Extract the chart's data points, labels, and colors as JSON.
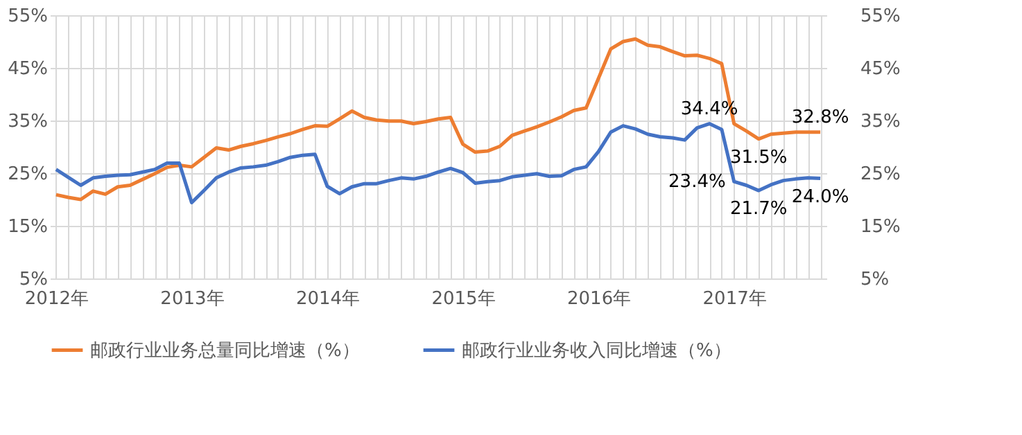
{
  "chart_data": {
    "type": "line",
    "categories": [
      "2012年",
      null,
      null,
      null,
      null,
      null,
      null,
      null,
      null,
      null,
      null,
      "2013年",
      null,
      null,
      null,
      null,
      null,
      null,
      null,
      null,
      null,
      null,
      "2014年",
      null,
      null,
      null,
      null,
      null,
      null,
      null,
      null,
      null,
      null,
      "2015年",
      null,
      null,
      null,
      null,
      null,
      null,
      null,
      null,
      null,
      null,
      "2016年",
      null,
      null,
      null,
      null,
      null,
      null,
      null,
      null,
      null,
      null,
      "2017年",
      null,
      null,
      null,
      null,
      null,
      null,
      null
    ],
    "series": [
      {
        "name": "邮政行业业务总量同比增速（%）",
        "color": "#ed7d31",
        "values": [
          20.9,
          20.4,
          20.0,
          21.6,
          21.0,
          22.4,
          22.7,
          23.8,
          24.9,
          26.1,
          26.5,
          26.2,
          28.0,
          29.8,
          29.4,
          30.1,
          30.6,
          31.2,
          31.9,
          32.5,
          33.3,
          34.0,
          33.9,
          35.3,
          36.8,
          35.6,
          35.1,
          34.9,
          34.9,
          34.4,
          34.8,
          35.3,
          35.6,
          30.5,
          29.0,
          29.2,
          30.1,
          32.2,
          33.0,
          33.8,
          34.7,
          35.7,
          36.9,
          37.4,
          43.0,
          48.6,
          50.0,
          50.5,
          49.3,
          49.0,
          48.1,
          47.3,
          47.4,
          46.8,
          45.8,
          34.4,
          33.0,
          31.5,
          32.4,
          32.6,
          32.8,
          32.8,
          32.8
        ],
        "value_labels": [
          null,
          null,
          null,
          null,
          null,
          null,
          null,
          null,
          null,
          null,
          null,
          null,
          null,
          null,
          null,
          null,
          null,
          null,
          null,
          null,
          null,
          null,
          null,
          null,
          null,
          null,
          null,
          null,
          null,
          null,
          null,
          null,
          null,
          null,
          null,
          null,
          null,
          null,
          null,
          null,
          null,
          null,
          null,
          null,
          null,
          null,
          null,
          null,
          null,
          null,
          null,
          null,
          null,
          null,
          null,
          null,
          null,
          "31.5%",
          null,
          null,
          null,
          null,
          "32.8%"
        ]
      },
      {
        "name": "邮政行业业务收入同比增速（%）",
        "color": "#4472c4",
        "values": [
          25.7,
          24.2,
          22.7,
          24.1,
          24.4,
          24.6,
          24.7,
          25.2,
          25.7,
          26.9,
          26.9,
          19.4,
          21.7,
          24.1,
          25.2,
          26.0,
          26.2,
          26.5,
          27.2,
          28.0,
          28.4,
          28.6,
          22.5,
          21.1,
          22.4,
          23.0,
          23.0,
          23.6,
          24.1,
          23.9,
          24.4,
          25.2,
          25.9,
          25.1,
          23.1,
          23.4,
          23.6,
          24.3,
          24.6,
          24.9,
          24.4,
          24.5,
          25.7,
          26.2,
          29.1,
          32.8,
          34.0,
          33.4,
          32.4,
          31.9,
          31.7,
          31.3,
          33.6,
          34.4,
          33.3,
          23.4,
          22.7,
          21.7,
          22.8,
          23.6,
          23.9,
          24.1,
          24.0
        ],
        "value_labels": [
          null,
          null,
          null,
          null,
          null,
          null,
          null,
          null,
          null,
          null,
          null,
          null,
          null,
          null,
          null,
          null,
          null,
          null,
          null,
          null,
          null,
          null,
          null,
          null,
          null,
          null,
          null,
          null,
          null,
          null,
          null,
          null,
          null,
          null,
          null,
          null,
          null,
          null,
          null,
          null,
          null,
          null,
          null,
          null,
          null,
          null,
          null,
          null,
          null,
          null,
          null,
          null,
          null,
          "34.4%",
          null,
          "23.4%",
          null,
          "21.7%",
          null,
          null,
          null,
          null,
          "24.0%"
        ]
      }
    ],
    "ylim": [
      5,
      55
    ],
    "yticks": [
      {
        "value": 5,
        "label": "5%"
      },
      {
        "value": 15,
        "label": "15%"
      },
      {
        "value": 25,
        "label": "25%"
      },
      {
        "value": 35,
        "label": "35%"
      },
      {
        "value": 45,
        "label": "45%"
      },
      {
        "value": 55,
        "label": "55%"
      }
    ],
    "y2lim": [
      5,
      55
    ],
    "y2ticks": [
      {
        "value": 5,
        "label": "5%"
      },
      {
        "value": 15,
        "label": "15%"
      },
      {
        "value": 25,
        "label": "25%"
      },
      {
        "value": 35,
        "label": "35%"
      },
      {
        "value": 45,
        "label": "45%"
      },
      {
        "value": 55,
        "label": "55%"
      }
    ],
    "grid": true,
    "legend": "bottom",
    "marker": "none",
    "line_style": "solid"
  }
}
